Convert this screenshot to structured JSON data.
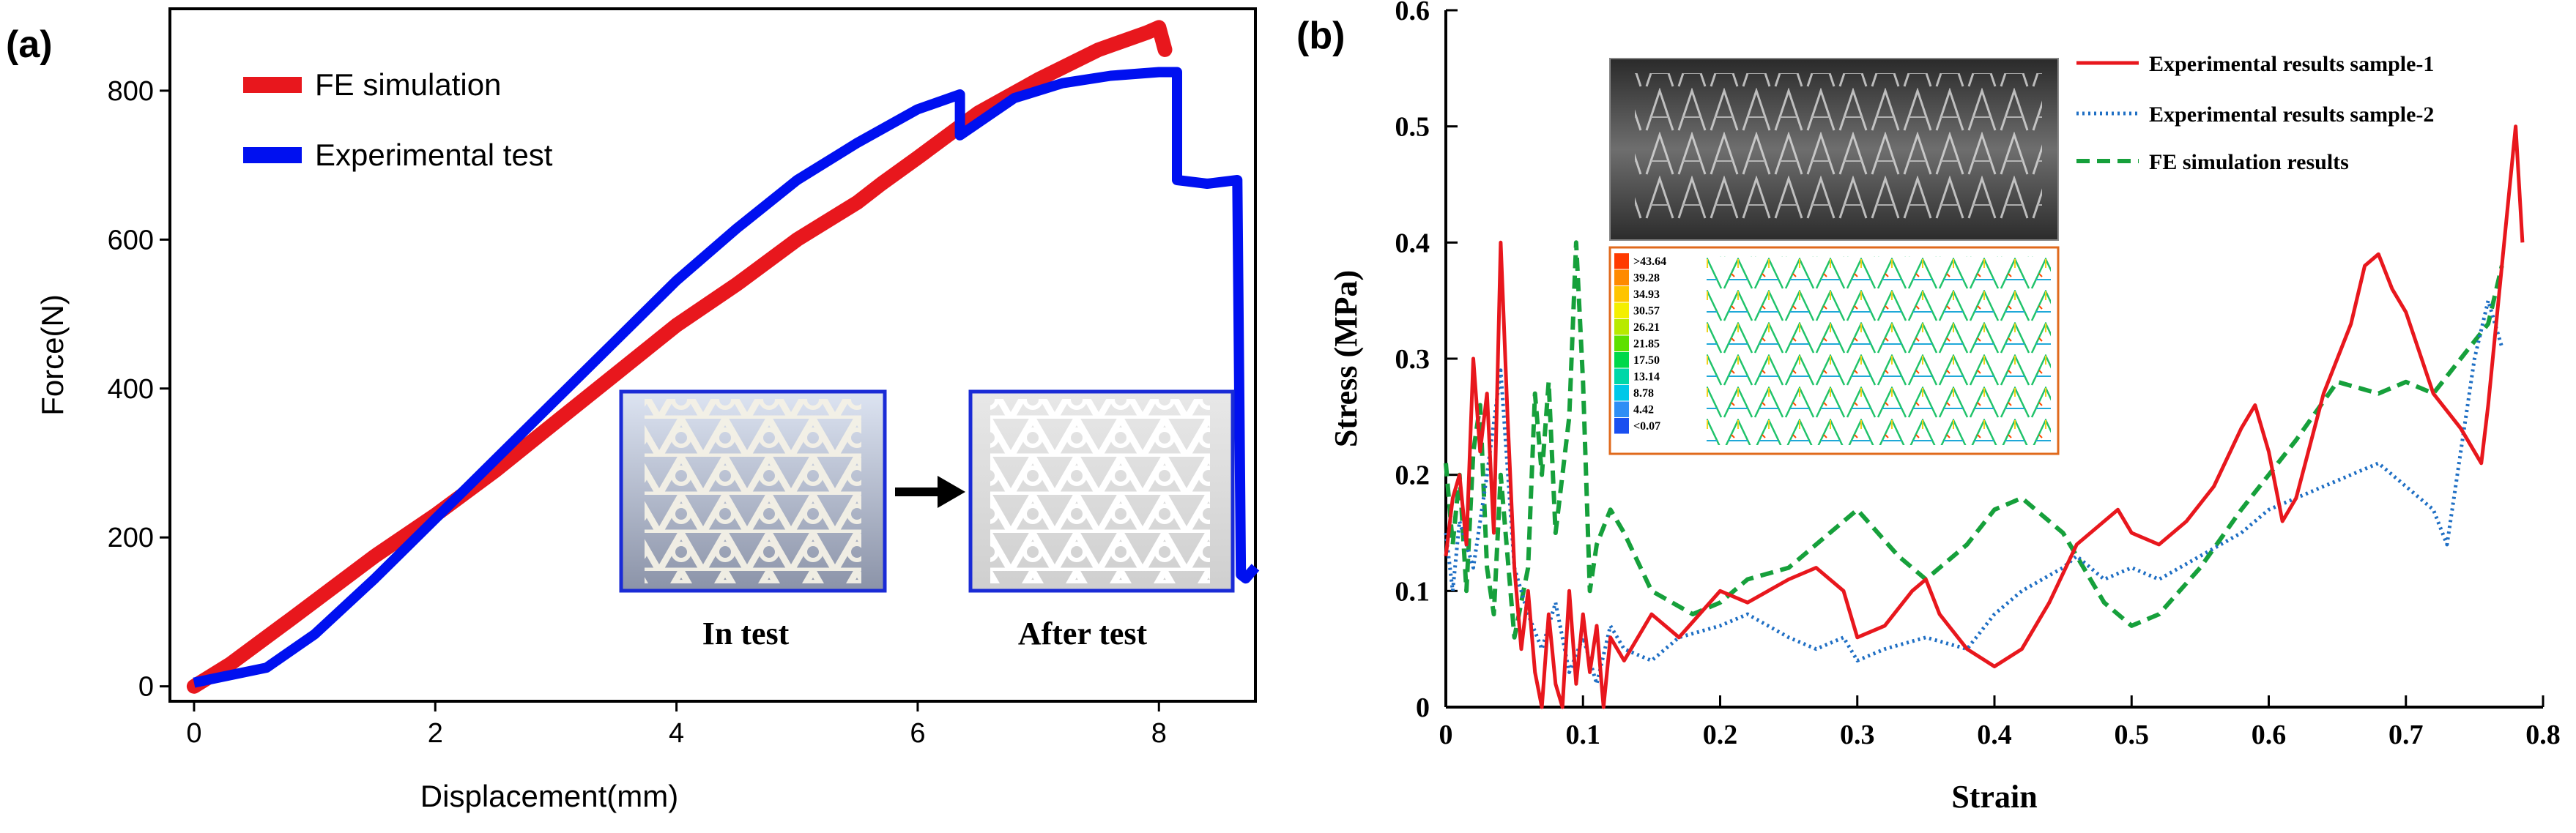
{
  "colors": {
    "red": "#e8171d",
    "blue": "#0010f0",
    "dotted_blue": "#1f6fc4",
    "green": "#16a03b",
    "axis": "#000000",
    "inset_border": "#1a2bd6",
    "contour_border": "#e06a1c"
  },
  "chart_data": [
    {
      "panel": "(a)",
      "type": "line",
      "xlabel": "Displacement(mm)",
      "ylabel": "Force(N)",
      "xlim": [
        -0.2,
        8.8
      ],
      "ylim": [
        -20,
        910
      ],
      "xticks": [
        0,
        2,
        4,
        6,
        8
      ],
      "yticks": [
        0,
        200,
        400,
        600,
        800
      ],
      "grid": false,
      "legend_position": "top-left",
      "series": [
        {
          "name": "FE simulation",
          "color": "#e8171d",
          "x": [
            0.0,
            0.3,
            0.8,
            1.5,
            2.0,
            2.5,
            3.0,
            3.5,
            4.0,
            4.5,
            5.0,
            5.5,
            5.7,
            6.0,
            6.5,
            7.0,
            7.5,
            7.9,
            8.0,
            8.05
          ],
          "y": [
            0,
            30,
            90,
            175,
            230,
            290,
            355,
            420,
            485,
            540,
            600,
            650,
            675,
            710,
            770,
            815,
            855,
            878,
            885,
            855
          ]
        },
        {
          "name": "Experimental test",
          "color": "#0010f0",
          "x": [
            0.0,
            0.3,
            0.6,
            1.0,
            1.5,
            2.0,
            2.5,
            3.0,
            3.5,
            4.0,
            4.5,
            5.0,
            5.5,
            6.0,
            6.35,
            6.35,
            6.8,
            7.2,
            7.6,
            8.0,
            8.15,
            8.15,
            8.4,
            8.65,
            8.68,
            8.72,
            8.8
          ],
          "y": [
            5,
            15,
            25,
            70,
            145,
            225,
            305,
            385,
            465,
            545,
            615,
            680,
            730,
            775,
            795,
            740,
            790,
            810,
            820,
            825,
            825,
            680,
            675,
            680,
            150,
            145,
            160
          ]
        }
      ],
      "inset": {
        "labels": [
          "In test",
          "After test"
        ]
      }
    },
    {
      "panel": "(b)",
      "type": "line",
      "xlabel": "Strain",
      "ylabel": "Stress (MPa)",
      "xlim": [
        0,
        0.8
      ],
      "ylim": [
        0,
        0.6
      ],
      "xticks": [
        0,
        0.1,
        0.2,
        0.3,
        0.4,
        0.5,
        0.6,
        0.7,
        0.8
      ],
      "yticks": [
        0,
        0.1,
        0.2,
        0.3,
        0.4,
        0.5,
        0.6
      ],
      "grid": false,
      "legend_position": "top-right",
      "series": [
        {
          "name": "Experimental results sample-1",
          "color": "#e8171d",
          "style": "solid",
          "x": [
            0.0,
            0.005,
            0.01,
            0.015,
            0.02,
            0.025,
            0.03,
            0.035,
            0.04,
            0.045,
            0.05,
            0.055,
            0.06,
            0.065,
            0.07,
            0.075,
            0.08,
            0.085,
            0.09,
            0.095,
            0.1,
            0.105,
            0.11,
            0.115,
            0.12,
            0.13,
            0.15,
            0.17,
            0.2,
            0.22,
            0.25,
            0.27,
            0.29,
            0.3,
            0.32,
            0.34,
            0.35,
            0.36,
            0.38,
            0.4,
            0.42,
            0.44,
            0.46,
            0.48,
            0.49,
            0.5,
            0.52,
            0.54,
            0.56,
            0.58,
            0.59,
            0.6,
            0.61,
            0.62,
            0.64,
            0.66,
            0.67,
            0.68,
            0.69,
            0.7,
            0.72,
            0.74,
            0.755,
            0.76,
            0.77,
            0.78,
            0.785
          ],
          "y": [
            0.13,
            0.18,
            0.2,
            0.14,
            0.3,
            0.22,
            0.27,
            0.15,
            0.4,
            0.25,
            0.12,
            0.05,
            0.1,
            0.03,
            0.0,
            0.08,
            0.02,
            0.0,
            0.1,
            0.02,
            0.08,
            0.03,
            0.07,
            0.0,
            0.06,
            0.04,
            0.08,
            0.06,
            0.1,
            0.09,
            0.11,
            0.12,
            0.1,
            0.06,
            0.07,
            0.1,
            0.11,
            0.08,
            0.05,
            0.035,
            0.05,
            0.09,
            0.14,
            0.16,
            0.17,
            0.15,
            0.14,
            0.16,
            0.19,
            0.24,
            0.26,
            0.22,
            0.16,
            0.18,
            0.27,
            0.33,
            0.38,
            0.39,
            0.36,
            0.34,
            0.27,
            0.24,
            0.21,
            0.26,
            0.38,
            0.5,
            0.4
          ]
        },
        {
          "name": "Experimental results sample-2",
          "color": "#1f6fc4",
          "style": "dotted",
          "x": [
            0.0,
            0.005,
            0.01,
            0.02,
            0.03,
            0.04,
            0.05,
            0.06,
            0.07,
            0.08,
            0.09,
            0.1,
            0.11,
            0.12,
            0.13,
            0.15,
            0.17,
            0.2,
            0.22,
            0.25,
            0.27,
            0.29,
            0.3,
            0.32,
            0.35,
            0.38,
            0.4,
            0.42,
            0.45,
            0.46,
            0.48,
            0.5,
            0.52,
            0.55,
            0.58,
            0.6,
            0.62,
            0.64,
            0.66,
            0.68,
            0.7,
            0.72,
            0.73,
            0.75,
            0.76,
            0.77
          ],
          "y": [
            0.15,
            0.1,
            0.16,
            0.12,
            0.2,
            0.29,
            0.12,
            0.08,
            0.05,
            0.09,
            0.03,
            0.06,
            0.02,
            0.07,
            0.05,
            0.04,
            0.06,
            0.07,
            0.08,
            0.06,
            0.05,
            0.06,
            0.04,
            0.05,
            0.06,
            0.05,
            0.08,
            0.1,
            0.12,
            0.13,
            0.11,
            0.12,
            0.11,
            0.13,
            0.15,
            0.17,
            0.18,
            0.19,
            0.2,
            0.21,
            0.19,
            0.17,
            0.14,
            0.3,
            0.35,
            0.31
          ]
        },
        {
          "name": "FE simulation results",
          "color": "#16a03b",
          "style": "dashed",
          "x": [
            0.0,
            0.005,
            0.01,
            0.015,
            0.02,
            0.025,
            0.03,
            0.035,
            0.04,
            0.05,
            0.06,
            0.065,
            0.07,
            0.075,
            0.08,
            0.085,
            0.09,
            0.095,
            0.1,
            0.105,
            0.11,
            0.12,
            0.13,
            0.15,
            0.18,
            0.2,
            0.22,
            0.25,
            0.28,
            0.3,
            0.33,
            0.35,
            0.38,
            0.4,
            0.42,
            0.45,
            0.48,
            0.5,
            0.52,
            0.55,
            0.58,
            0.6,
            0.62,
            0.65,
            0.68,
            0.7,
            0.72,
            0.74,
            0.76,
            0.77
          ],
          "y": [
            0.21,
            0.14,
            0.2,
            0.1,
            0.22,
            0.26,
            0.12,
            0.08,
            0.2,
            0.06,
            0.12,
            0.27,
            0.2,
            0.28,
            0.15,
            0.2,
            0.25,
            0.4,
            0.28,
            0.1,
            0.14,
            0.17,
            0.15,
            0.1,
            0.08,
            0.09,
            0.11,
            0.12,
            0.15,
            0.17,
            0.13,
            0.11,
            0.14,
            0.17,
            0.18,
            0.15,
            0.09,
            0.07,
            0.08,
            0.12,
            0.17,
            0.2,
            0.23,
            0.28,
            0.27,
            0.28,
            0.27,
            0.3,
            0.33,
            0.38
          ]
        }
      ],
      "contour_legend": {
        "labels": [
          ">43.64",
          "39.28",
          "34.93",
          "30.57",
          "26.21",
          "21.85",
          "17.50",
          "13.14",
          "8.78",
          "4.42",
          "<0.07"
        ],
        "colors": [
          "#ff3a00",
          "#ff8a00",
          "#ffc400",
          "#f4ef00",
          "#b8ea00",
          "#5ee000",
          "#00d84a",
          "#00d7a8",
          "#00c8e8",
          "#2f8ef5",
          "#1a4ff0"
        ]
      }
    }
  ]
}
